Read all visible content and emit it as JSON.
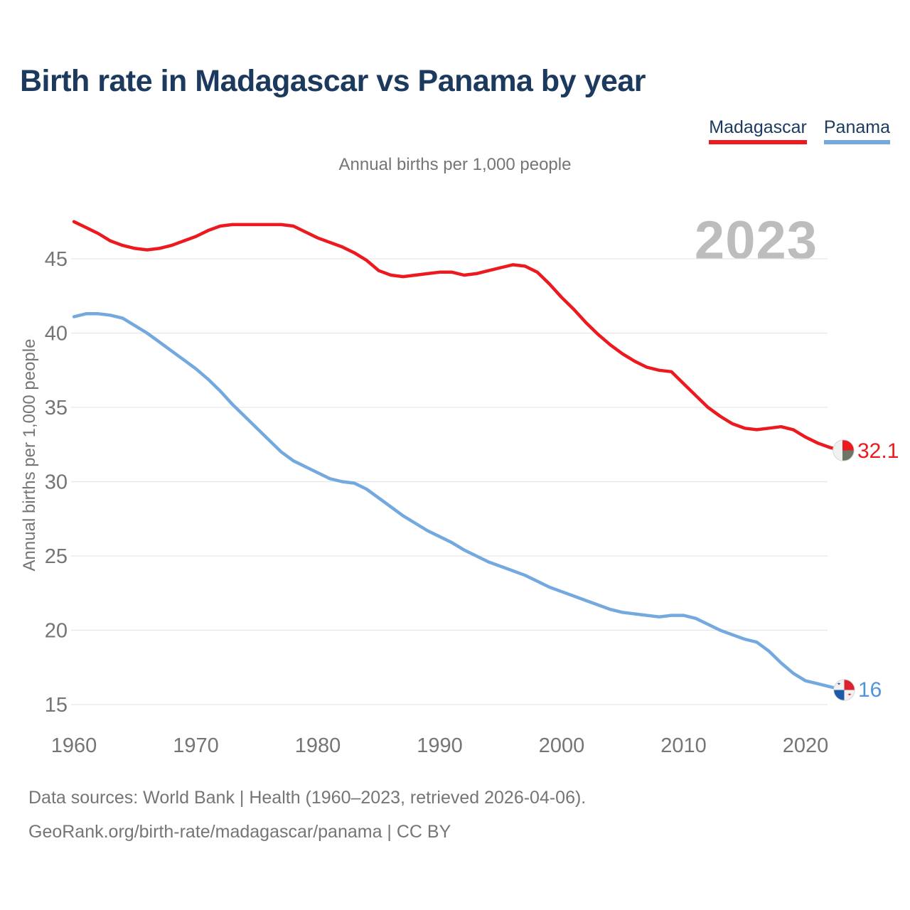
{
  "header": {
    "title": "Birth rate in Madagascar vs Panama by year"
  },
  "legend": {
    "madagascar": {
      "label": "Madagascar",
      "color": "#ec1a1e"
    },
    "panama": {
      "label": "Panama",
      "color": "#74a9df"
    }
  },
  "subtitle": "Annual births per 1,000 people",
  "watermark_year": "2023",
  "end_labels": {
    "madagascar": "32.1",
    "panama": "16"
  },
  "footer": {
    "line1": "Data sources: World Bank | Health (1960–2023, retrieved 2026-04-06).",
    "line2": "GeoRank.org/birth-rate/madagascar/panama | CC BY"
  },
  "chart_data": {
    "type": "line",
    "title": "Annual births per 1,000 people",
    "xlabel": "",
    "ylabel": "Annual births per 1,000 people",
    "x": [
      1960,
      1961,
      1962,
      1963,
      1964,
      1965,
      1966,
      1967,
      1968,
      1969,
      1970,
      1971,
      1972,
      1973,
      1974,
      1975,
      1976,
      1977,
      1978,
      1979,
      1980,
      1981,
      1982,
      1983,
      1984,
      1985,
      1986,
      1987,
      1988,
      1989,
      1990,
      1991,
      1992,
      1993,
      1994,
      1995,
      1996,
      1997,
      1998,
      1999,
      2000,
      2001,
      2002,
      2003,
      2004,
      2005,
      2006,
      2007,
      2008,
      2009,
      2010,
      2011,
      2012,
      2013,
      2014,
      2015,
      2016,
      2017,
      2018,
      2019,
      2020,
      2021,
      2022,
      2023
    ],
    "series": [
      {
        "name": "Madagascar",
        "color": "#ec1a1e",
        "final_value": 32.1,
        "values": [
          47.5,
          47.1,
          46.7,
          46.2,
          45.9,
          45.7,
          45.6,
          45.7,
          45.9,
          46.2,
          46.5,
          46.9,
          47.2,
          47.3,
          47.3,
          47.3,
          47.3,
          47.3,
          47.2,
          46.8,
          46.4,
          46.1,
          45.8,
          45.4,
          44.9,
          44.2,
          43.9,
          43.8,
          43.9,
          44.0,
          44.1,
          44.1,
          43.9,
          44.0,
          44.2,
          44.4,
          44.6,
          44.5,
          44.1,
          43.3,
          42.4,
          41.6,
          40.7,
          39.9,
          39.2,
          38.6,
          38.1,
          37.7,
          37.5,
          37.4,
          36.6,
          35.8,
          35.0,
          34.4,
          33.9,
          33.6,
          33.5,
          33.6,
          33.7,
          33.5,
          33.0,
          32.6,
          32.3,
          32.1
        ]
      },
      {
        "name": "Panama",
        "color": "#74a9df",
        "final_value": 16,
        "values": [
          41.1,
          41.3,
          41.3,
          41.2,
          41.0,
          40.5,
          40.0,
          39.4,
          38.8,
          38.2,
          37.6,
          36.9,
          36.1,
          35.2,
          34.4,
          33.6,
          32.8,
          32.0,
          31.4,
          31.0,
          30.6,
          30.2,
          30.0,
          29.9,
          29.5,
          28.9,
          28.3,
          27.7,
          27.2,
          26.7,
          26.3,
          25.9,
          25.4,
          25.0,
          24.6,
          24.3,
          24.0,
          23.7,
          23.3,
          22.9,
          22.6,
          22.3,
          22.0,
          21.7,
          21.4,
          21.2,
          21.1,
          21.0,
          20.9,
          21.0,
          21.0,
          20.8,
          20.4,
          20.0,
          19.7,
          19.4,
          19.2,
          18.6,
          17.8,
          17.1,
          16.6,
          16.4,
          16.2,
          16.0
        ]
      }
    ],
    "xticks": [
      1960,
      1970,
      1980,
      1990,
      2000,
      2010,
      2020
    ],
    "yticks": [
      15,
      20,
      25,
      30,
      35,
      40,
      45
    ],
    "ylim": [
      14,
      48.5
    ],
    "xlim": [
      1960,
      2023
    ],
    "grid": "horizontal-only",
    "legend_position": "top-right"
  }
}
